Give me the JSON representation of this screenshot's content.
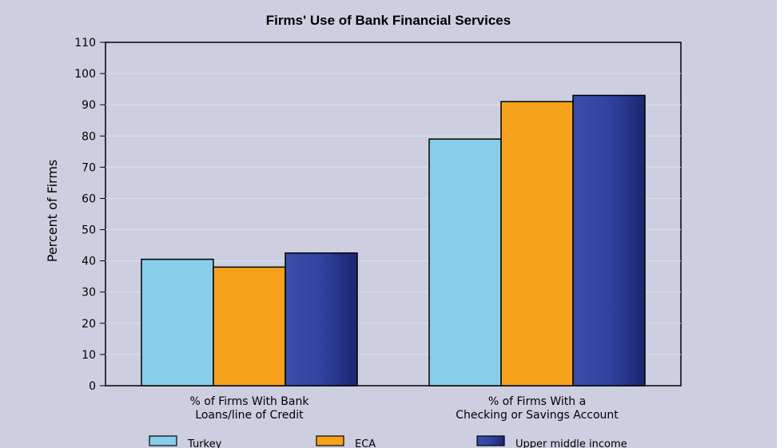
{
  "chart_data": {
    "type": "bar",
    "title": "Firms' Use of Bank Financial Services",
    "ylabel": "Percent of Firms",
    "ylim": [
      0,
      110
    ],
    "yticks": [
      0,
      10,
      20,
      30,
      40,
      50,
      60,
      70,
      80,
      90,
      100,
      110
    ],
    "categories": [
      [
        "% of Firms With Bank",
        "Loans/line of Credit"
      ],
      [
        "% of Firms With a",
        "Checking or Savings Account"
      ]
    ],
    "series": [
      {
        "name": "Turkey",
        "values": [
          40.5,
          79
        ],
        "color": "#87ceeb"
      },
      {
        "name": "ECA",
        "values": [
          38,
          91
        ],
        "color": "#f7a21b"
      },
      {
        "name": "Upper middle income",
        "values": [
          42.5,
          93
        ],
        "color": "#2c3d8f"
      }
    ],
    "grid": true,
    "legend_position": "bottom"
  }
}
